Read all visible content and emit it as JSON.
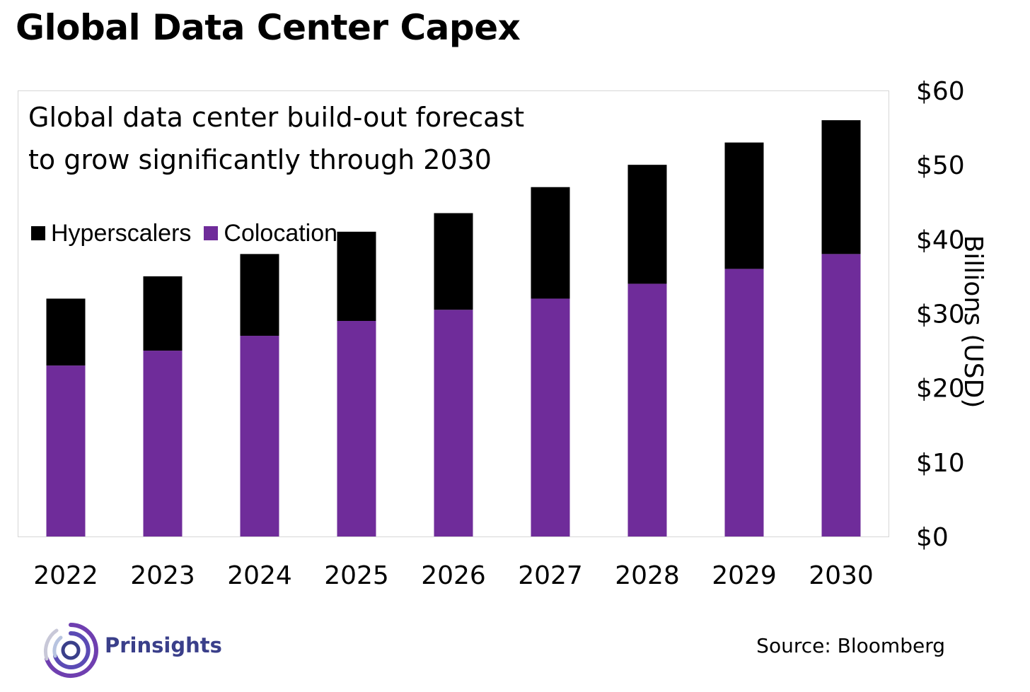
{
  "title": "Global Data Center Capex",
  "subtitle_lines": [
    "Global data center build-out forecast",
    "to grow significantly through 2030"
  ],
  "brand": {
    "name": "Prinsights",
    "logo_icon": "concentric-circles-logo-icon"
  },
  "source": "Source: Bloomberg",
  "colors": {
    "hyperscalers": "#000000",
    "colocation": "#6f2c9a",
    "border": "#d6d6d6"
  },
  "chart_data": {
    "type": "bar",
    "stacked": true,
    "title": "Global Data Center Capex",
    "subtitle": "Global data center build-out forecast to grow significantly through 2030",
    "categories": [
      "2022",
      "2023",
      "2024",
      "2025",
      "2026",
      "2027",
      "2028",
      "2029",
      "2030"
    ],
    "series": [
      {
        "name": "Colocation",
        "color": "#6f2c9a",
        "values": [
          23,
          25,
          27,
          29,
          30.5,
          32,
          34,
          36,
          38
        ]
      },
      {
        "name": "Hyperscalers",
        "color": "#000000",
        "values": [
          9,
          10,
          11,
          12,
          13,
          15,
          16,
          17,
          18
        ]
      }
    ],
    "legend": [
      "Hyperscalers",
      "Colocation"
    ],
    "legend_position": "top-left",
    "ylabel": "Billions (USD)",
    "yaxis_position": "right",
    "ylim": [
      0,
      60
    ],
    "yticks": [
      0,
      10,
      20,
      30,
      40,
      50,
      60
    ],
    "ytick_labels": [
      "$0",
      "$10",
      "$20",
      "$30",
      "$40",
      "$50",
      "$60"
    ],
    "grid": false
  }
}
